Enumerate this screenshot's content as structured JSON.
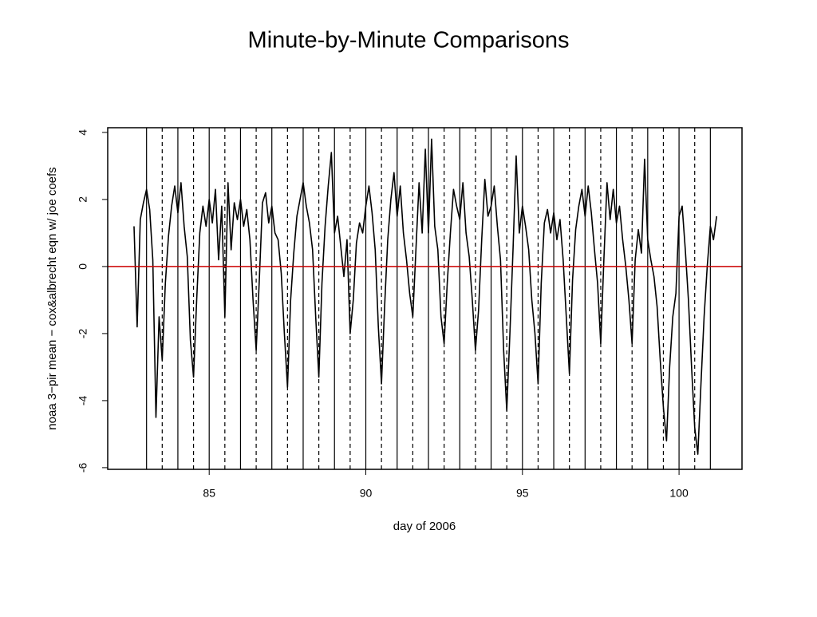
{
  "chart_data": {
    "type": "line",
    "title": "Minute-by-Minute Comparisons",
    "x_label": "day of 2006",
    "y_label": "noaa 3−pir mean − cox&albrecht eqn w/ joe coefs",
    "color": "#000000",
    "xlim": [
      81.76,
      102.01
    ],
    "ylim": [
      -6.05,
      4.14
    ],
    "xticks": [
      85,
      90,
      95,
      100
    ],
    "yticks": [
      -6,
      -4,
      -2,
      0,
      2,
      4
    ],
    "reference_line": {
      "value": 0,
      "color": "#cc0000"
    },
    "solid_vlines": [
      83,
      84,
      85,
      86,
      87,
      88,
      89,
      90,
      91,
      92,
      93,
      94,
      95,
      96,
      97,
      98,
      99,
      100,
      101
    ],
    "dashed_vlines": [
      83.5,
      84.5,
      85.5,
      86.5,
      87.5,
      88.5,
      89.5,
      90.5,
      91.5,
      92.5,
      93.5,
      94.5,
      95.5,
      96.5,
      97.5,
      98.5,
      99.5,
      100.5
    ],
    "x": [
      82.6,
      82.7,
      82.8,
      82.9,
      83.0,
      83.1,
      83.2,
      83.3,
      83.4,
      83.5,
      83.6,
      83.7,
      83.8,
      83.9,
      84.0,
      84.1,
      84.2,
      84.3,
      84.4,
      84.5,
      84.6,
      84.7,
      84.8,
      84.9,
      85.0,
      85.1,
      85.2,
      85.3,
      85.4,
      85.5,
      85.6,
      85.7,
      85.8,
      85.9,
      86.0,
      86.1,
      86.2,
      86.3,
      86.4,
      86.5,
      86.6,
      86.7,
      86.8,
      86.9,
      87.0,
      87.1,
      87.2,
      87.3,
      87.4,
      87.5,
      87.6,
      87.7,
      87.8,
      87.9,
      88.0,
      88.1,
      88.2,
      88.3,
      88.4,
      88.5,
      88.6,
      88.7,
      88.8,
      88.9,
      89.0,
      89.1,
      89.2,
      89.3,
      89.4,
      89.5,
      89.6,
      89.7,
      89.8,
      89.9,
      90.0,
      90.1,
      90.2,
      90.3,
      90.4,
      90.5,
      90.6,
      90.7,
      90.8,
      90.9,
      91.0,
      91.1,
      91.2,
      91.3,
      91.4,
      91.5,
      91.6,
      91.7,
      91.8,
      91.9,
      92.0,
      92.1,
      92.2,
      92.3,
      92.4,
      92.5,
      92.6,
      92.7,
      92.8,
      92.9,
      93.0,
      93.1,
      93.2,
      93.3,
      93.4,
      93.5,
      93.6,
      93.7,
      93.8,
      93.9,
      94.0,
      94.1,
      94.2,
      94.3,
      94.4,
      94.5,
      94.6,
      94.7,
      94.8,
      94.9,
      95.0,
      95.1,
      95.2,
      95.3,
      95.4,
      95.5,
      95.6,
      95.7,
      95.8,
      95.9,
      96.0,
      96.1,
      96.2,
      96.3,
      96.4,
      96.5,
      96.6,
      96.7,
      96.8,
      96.9,
      97.0,
      97.1,
      97.2,
      97.3,
      97.4,
      97.5,
      97.6,
      97.7,
      97.8,
      97.9,
      98.0,
      98.1,
      98.2,
      98.3,
      98.4,
      98.5,
      98.6,
      98.7,
      98.8,
      98.9,
      99.0,
      99.1,
      99.2,
      99.3,
      99.4,
      99.5,
      99.6,
      99.7,
      99.8,
      99.9,
      100.0,
      100.1,
      100.2,
      100.3,
      100.4,
      100.5,
      100.6,
      100.7,
      100.8,
      100.9,
      101.0,
      101.1,
      101.2
    ],
    "values": [
      1.2,
      -1.8,
      1.4,
      1.9,
      2.3,
      1.7,
      0.2,
      -4.5,
      -1.5,
      -2.8,
      -0.5,
      0.9,
      1.8,
      2.4,
      1.6,
      2.5,
      1.2,
      0.3,
      -2.2,
      -3.3,
      -1.0,
      1.0,
      1.8,
      1.2,
      2.0,
      1.3,
      2.3,
      0.2,
      1.8,
      -1.5,
      2.5,
      0.5,
      1.9,
      1.4,
      2.0,
      1.2,
      1.7,
      0.8,
      -1.0,
      -2.5,
      -0.4,
      1.9,
      2.2,
      1.3,
      1.8,
      1.0,
      0.8,
      -0.2,
      -2.0,
      -3.6,
      -1.0,
      0.4,
      1.5,
      2.0,
      2.5,
      1.8,
      1.3,
      0.5,
      -1.5,
      -3.3,
      -0.5,
      1.2,
      2.4,
      3.4,
      1.0,
      1.5,
      0.6,
      -0.3,
      0.8,
      -2.0,
      -1.0,
      0.7,
      1.3,
      1.0,
      1.8,
      2.4,
      1.6,
      0.5,
      -1.8,
      -3.5,
      -1.2,
      0.8,
      2.0,
      2.8,
      1.5,
      2.4,
      1.0,
      0.2,
      -0.8,
      -1.5,
      0.5,
      2.5,
      1.0,
      3.5,
      1.0,
      3.8,
      1.2,
      0.5,
      -1.5,
      -2.3,
      -0.5,
      1.0,
      2.3,
      1.8,
      1.4,
      2.5,
      1.0,
      0.3,
      -1.0,
      -2.5,
      -1.3,
      0.8,
      2.6,
      1.5,
      1.8,
      2.4,
      1.2,
      0.2,
      -2.5,
      -4.3,
      -2.0,
      0.5,
      3.3,
      1.0,
      1.8,
      1.2,
      0.5,
      -1.0,
      -2.0,
      -3.5,
      -0.5,
      1.3,
      1.7,
      1.0,
      1.6,
      0.8,
      1.4,
      0.2,
      -1.5,
      -3.2,
      -0.4,
      1.1,
      1.8,
      2.3,
      1.5,
      2.4,
      1.6,
      0.5,
      -0.5,
      -2.3,
      0.2,
      2.5,
      1.4,
      2.3,
      1.3,
      1.8,
      0.8,
      0.0,
      -1.0,
      -2.3,
      0.2,
      1.1,
      0.4,
      3.2,
      0.8,
      0.2,
      -0.3,
      -1.2,
      -2.8,
      -4.2,
      -5.2,
      -3.0,
      -1.5,
      -0.8,
      1.5,
      1.8,
      0.5,
      -1.0,
      -3.0,
      -4.8,
      -5.6,
      -3.5,
      -1.5,
      0.0,
      1.2,
      0.8,
      1.5
    ]
  }
}
